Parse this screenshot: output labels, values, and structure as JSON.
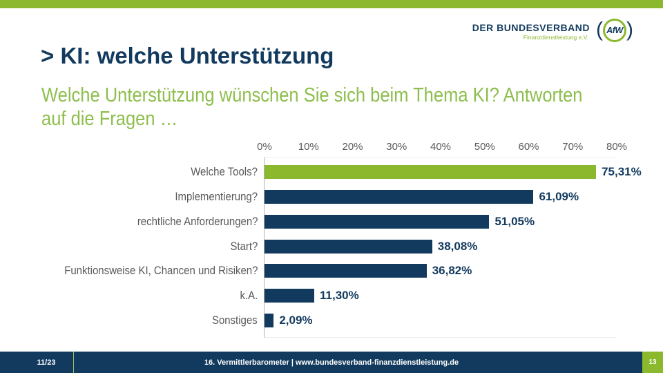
{
  "slide": {
    "title": "> KI: welche Unterstützung",
    "subtitle_line1": "Welche Unterstützung wünschen Sie sich beim Thema KI? Antworten",
    "subtitle_line2": "auf die Fragen …"
  },
  "logo": {
    "org_name": "DER BUNDESVERBAND",
    "org_subtitle": "Finanzdienstleistung e.V.",
    "emblem_text": "AfW",
    "paren_left": "(",
    "paren_right": ")"
  },
  "footer": {
    "date": "11/23",
    "center_text": "16. Vermittlerbarometer | www.bundesverband-finanzdienstleistung.de",
    "page_number": "13"
  },
  "colors": {
    "navy": "#123A5E",
    "green": "#8CB82D",
    "subtitle_green": "#8EBE4D",
    "label_gray": "#595959"
  },
  "chart_data": {
    "type": "bar",
    "orientation": "horizontal",
    "title": "",
    "xlabel": "",
    "ylabel": "",
    "categories": [
      "Welche Tools?",
      "Implementierung?",
      "rechtliche Anforderungen?",
      "Start?",
      "Funktionsweise KI, Chancen und Risiken?",
      "k.A.",
      "Sonstiges"
    ],
    "values": [
      75.31,
      61.09,
      51.05,
      38.08,
      36.82,
      11.3,
      2.09
    ],
    "value_labels": [
      "75,31%",
      "61,09%",
      "51,05%",
      "38,08%",
      "36,82%",
      "11,30%",
      "2,09%"
    ],
    "bar_colors": [
      "#8CB82D",
      "#123A5E",
      "#123A5E",
      "#123A5E",
      "#123A5E",
      "#123A5E",
      "#123A5E"
    ],
    "x_ticks": [
      "0%",
      "10%",
      "20%",
      "30%",
      "40%",
      "50%",
      "60%",
      "70%",
      "80%"
    ],
    "xlim": [
      0,
      80
    ],
    "grid": false,
    "axis_label_position": "top",
    "legend": null
  }
}
